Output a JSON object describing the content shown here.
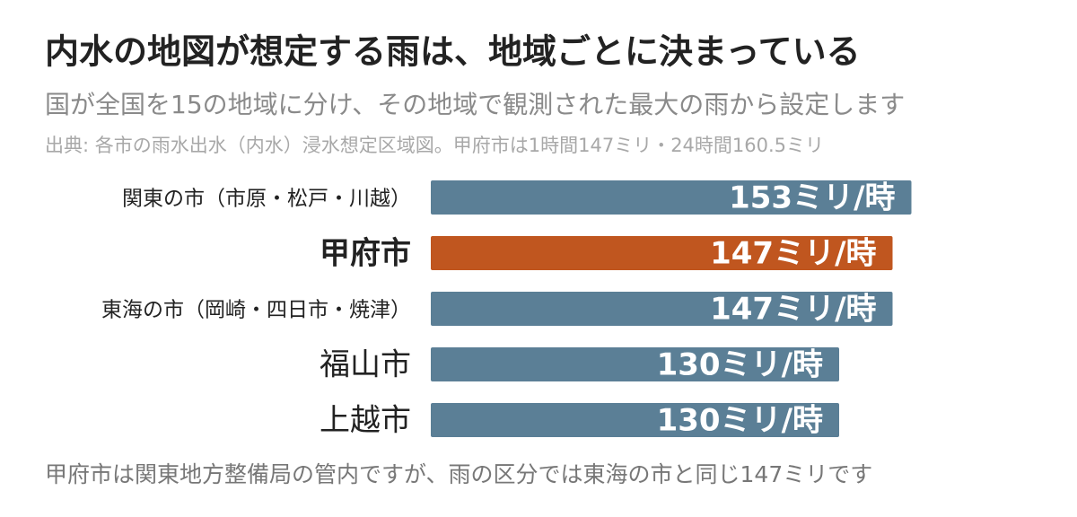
{
  "chart_data": {
    "type": "bar",
    "orientation": "horizontal",
    "title": "内水の地図が想定する雨は、地域ごとに決まっている",
    "subtitle": "国が全国を15の地域に分け、その地域で観測された最大の雨から設定します",
    "source": "出典: 各市の雨水出水（内水）浸水想定区域図。甲府市は1時間147ミリ・24時間160.5ミリ",
    "categories": [
      "関東の市（市原・松戸・川越）",
      "甲府市",
      "東海の市（岡崎・四日市・焼津）",
      "福山市",
      "上越市"
    ],
    "values": [
      153,
      147,
      147,
      130,
      130
    ],
    "value_labels": [
      "153ミリ/時",
      "147ミリ/時",
      "147ミリ/時",
      "130ミリ/時",
      "130ミリ/時"
    ],
    "colors": [
      "#5b7f96",
      "#c0561f",
      "#5b7f96",
      "#5b7f96",
      "#5b7f96"
    ],
    "note": "甲府市は関東地方整備局の管内ですが、雨の区分では東海の市と同じ147ミリです"
  }
}
